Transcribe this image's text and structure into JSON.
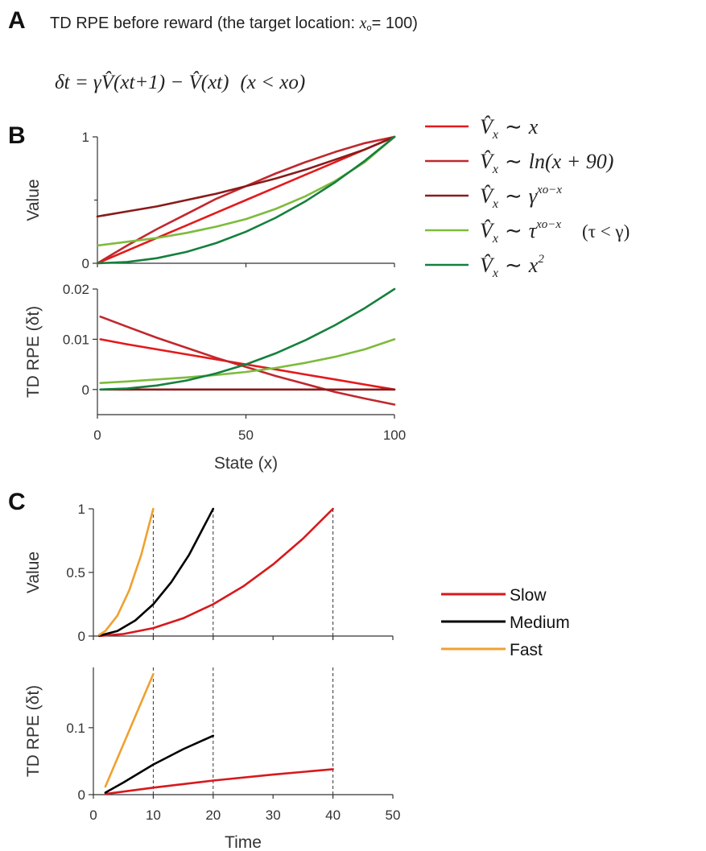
{
  "header": {
    "label": "A",
    "title_prefix": "TD RPE before reward (the target location: ",
    "title_var": "x",
    "title_sub": "o",
    "title_suffix": "= 100)",
    "equation": {
      "lhs": "δt = γV̂(xt+1) − V̂(xt)",
      "condition": "(x < xo)"
    }
  },
  "panel_labels": {
    "b": "B",
    "c": "C"
  },
  "chart_data": [
    {
      "id": "B-value",
      "type": "line",
      "ylabel": "Value",
      "xlim": [
        0,
        100
      ],
      "ylim": [
        0,
        1
      ],
      "yticks": [
        "0",
        "1"
      ],
      "xticks": [
        "0",
        "50",
        "100"
      ],
      "x": [
        0,
        10,
        20,
        30,
        40,
        50,
        60,
        70,
        80,
        90,
        100
      ],
      "series": [
        {
          "name": "V̂x ~ x",
          "color": "#e31a1c",
          "values": [
            0,
            0.1,
            0.2,
            0.3,
            0.4,
            0.5,
            0.6,
            0.7,
            0.8,
            0.9,
            1.0
          ]
        },
        {
          "name": "V̂x ~ ln(x + 90)",
          "color": "#c0282d",
          "values": [
            0,
            0.14,
            0.27,
            0.39,
            0.51,
            0.61,
            0.71,
            0.8,
            0.88,
            0.95,
            1.0
          ]
        },
        {
          "name": "V̂x ~ γ^(xo−x)",
          "color": "#8b1a1a",
          "values": [
            0.37,
            0.41,
            0.45,
            0.5,
            0.55,
            0.61,
            0.67,
            0.74,
            0.82,
            0.9,
            1.0
          ]
        },
        {
          "name": "V̂x ~ τ^(xo−x) (τ < γ)",
          "color": "#7dbb3c",
          "values": [
            0.14,
            0.17,
            0.2,
            0.24,
            0.29,
            0.35,
            0.43,
            0.53,
            0.65,
            0.8,
            1.0
          ]
        },
        {
          "name": "V̂x ~ x²",
          "color": "#15803d",
          "values": [
            0,
            0.01,
            0.04,
            0.09,
            0.16,
            0.25,
            0.36,
            0.49,
            0.64,
            0.81,
            1.0
          ]
        }
      ]
    },
    {
      "id": "B-rpe",
      "type": "line",
      "ylabel": "TD RPE (δt)",
      "xlabel": "State (x)",
      "xlim": [
        0,
        100
      ],
      "ylim": [
        -0.005,
        0.02
      ],
      "yticks": [
        "0",
        "0.01",
        "0.02"
      ],
      "xticks": [
        "0",
        "50",
        "100"
      ],
      "x": [
        1,
        10,
        20,
        30,
        40,
        50,
        60,
        70,
        80,
        90,
        100
      ],
      "series": [
        {
          "name": "V̂x ~ x",
          "color": "#e31a1c",
          "values": [
            0.01,
            0.009,
            0.008,
            0.007,
            0.006,
            0.005,
            0.004,
            0.003,
            0.002,
            0.001,
            0.0
          ]
        },
        {
          "name": "V̂x ~ ln(x + 90)",
          "color": "#c0282d",
          "values": [
            0.0145,
            0.0125,
            0.0103,
            0.0083,
            0.0063,
            0.0045,
            0.0027,
            0.0011,
            -0.0005,
            -0.0018,
            -0.003
          ]
        },
        {
          "name": "V̂x ~ γ^(xo−x)",
          "color": "#8b1a1a",
          "values": [
            0,
            0,
            0,
            0,
            0,
            0,
            0,
            0,
            0,
            0,
            0
          ]
        },
        {
          "name": "V̂x ~ τ^(xo−x) (τ < γ)",
          "color": "#7dbb3c",
          "values": [
            0.0013,
            0.0016,
            0.002,
            0.0024,
            0.0029,
            0.0035,
            0.0043,
            0.0053,
            0.0065,
            0.008,
            0.01
          ]
        },
        {
          "name": "V̂x ~ x²",
          "color": "#15803d",
          "values": [
            0.0,
            0.0002,
            0.0008,
            0.0018,
            0.0032,
            0.005,
            0.0072,
            0.0098,
            0.0128,
            0.0162,
            0.02
          ]
        }
      ]
    },
    {
      "id": "C-value",
      "type": "line",
      "ylabel": "Value",
      "xlim": [
        0,
        50
      ],
      "ylim": [
        0,
        1
      ],
      "yticks": [
        "0",
        "0.5",
        "1"
      ],
      "xticks": [
        "0",
        "10",
        "20",
        "30",
        "40",
        "50"
      ],
      "vlines": [
        10,
        20,
        40
      ],
      "series": [
        {
          "name": "Slow",
          "color": "#d7191c",
          "x": [
            1,
            5,
            10,
            15,
            20,
            25,
            30,
            35,
            40
          ],
          "values": [
            0.0006,
            0.016,
            0.0625,
            0.14,
            0.25,
            0.39,
            0.5625,
            0.766,
            1.0
          ]
        },
        {
          "name": "Medium",
          "color": "#000000",
          "x": [
            1,
            4,
            7,
            10,
            13,
            16,
            20
          ],
          "values": [
            0.0025,
            0.04,
            0.1225,
            0.25,
            0.4225,
            0.64,
            1.0
          ]
        },
        {
          "name": "Fast",
          "color": "#f0a030",
          "x": [
            1,
            2,
            4,
            6,
            8,
            10
          ],
          "values": [
            0.01,
            0.04,
            0.16,
            0.36,
            0.64,
            1.0
          ]
        }
      ]
    },
    {
      "id": "C-rpe",
      "type": "line",
      "ylabel": "TD RPE (δt)",
      "xlabel": "Time",
      "xlim": [
        0,
        50
      ],
      "ylim": [
        0,
        0.19
      ],
      "yticks": [
        "0",
        "0.1"
      ],
      "xticks": [
        "0",
        "10",
        "20",
        "30",
        "40",
        "50"
      ],
      "vlines": [
        10,
        20,
        40
      ],
      "series": [
        {
          "name": "Slow",
          "color": "#d7191c",
          "x": [
            2,
            10,
            20,
            30,
            40
          ],
          "values": [
            0.001,
            0.0105,
            0.021,
            0.03,
            0.038
          ]
        },
        {
          "name": "Medium",
          "color": "#000000",
          "x": [
            2,
            5,
            10,
            15,
            20
          ],
          "values": [
            0.003,
            0.018,
            0.045,
            0.068,
            0.088
          ]
        },
        {
          "name": "Fast",
          "color": "#f0a030",
          "x": [
            2,
            6,
            10
          ],
          "values": [
            0.012,
            0.096,
            0.18
          ]
        }
      ]
    }
  ],
  "legend_b": [
    {
      "color": "#e31a1c",
      "base": "V̂",
      "sub": "x",
      "rel": "∼",
      "expr": "x",
      "expr_sup": "",
      "note": ""
    },
    {
      "color": "#c0282d",
      "base": "V̂",
      "sub": "x",
      "rel": "∼",
      "expr": "ln(x + 90)",
      "expr_sup": "",
      "note": ""
    },
    {
      "color": "#8b1a1a",
      "base": "V̂",
      "sub": "x",
      "rel": "∼",
      "expr": "γ",
      "expr_sup": "xo−x",
      "note": ""
    },
    {
      "color": "#7dbb3c",
      "base": "V̂",
      "sub": "x",
      "rel": "∼",
      "expr": "τ",
      "expr_sup": "xo−x",
      "note": "(τ < γ)"
    },
    {
      "color": "#15803d",
      "base": "V̂",
      "sub": "x",
      "rel": "∼",
      "expr": "x",
      "expr_sup": "2",
      "note": ""
    }
  ],
  "legend_c": [
    {
      "label": "Slow",
      "color": "#d7191c"
    },
    {
      "label": "Medium",
      "color": "#000000"
    },
    {
      "label": "Fast",
      "color": "#f0a030"
    }
  ]
}
